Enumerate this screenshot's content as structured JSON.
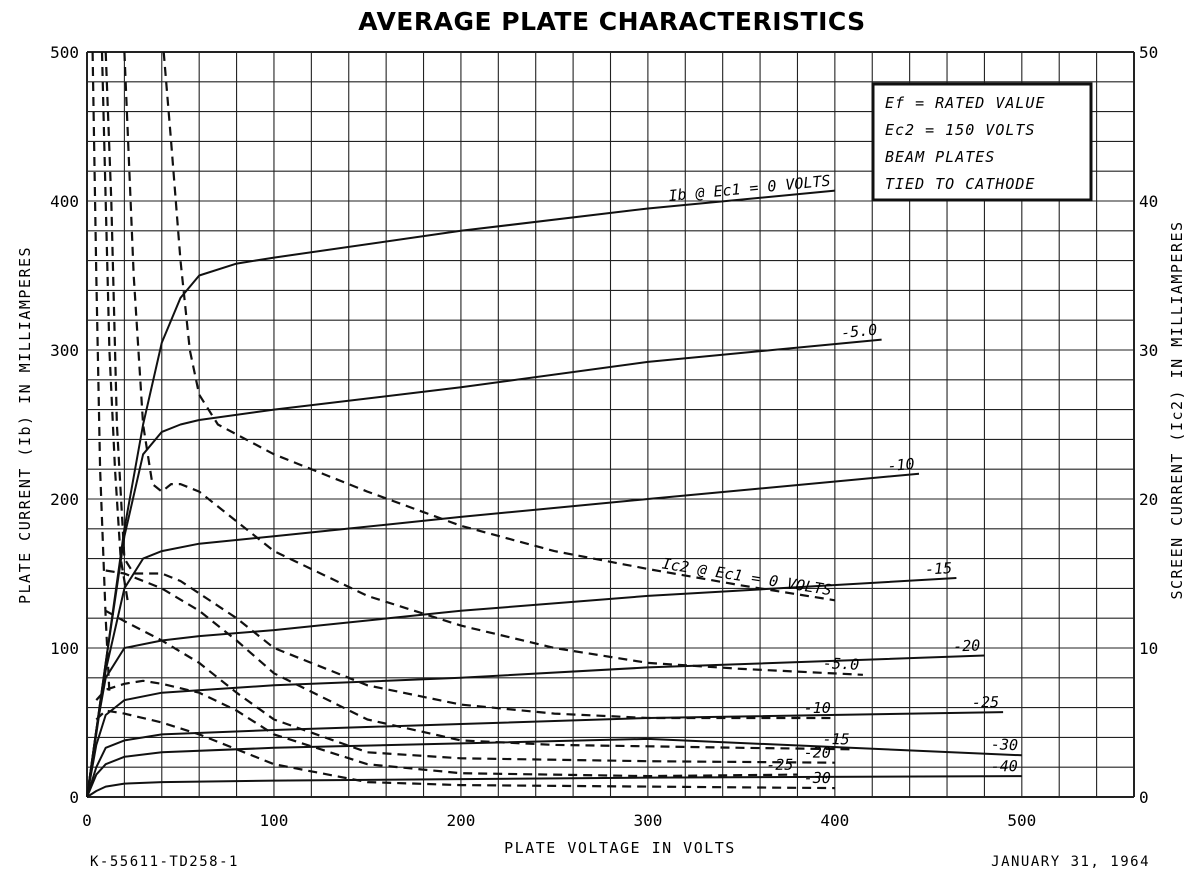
{
  "chart_data": {
    "type": "line",
    "title": "AVERAGE PLATE CHARACTERISTICS",
    "xlabel": "PLATE VOLTAGE IN VOLTS",
    "ylabel": "PLATE CURRENT (Ib) IN MILLIAMPERES",
    "y2label": "SCREEN CURRENT (Ic2) IN MILLIAMPERES",
    "xlim": [
      0,
      560
    ],
    "ylim": [
      0,
      500
    ],
    "y2lim": [
      0,
      50
    ],
    "x_ticks": [
      "0",
      "100",
      "200",
      "300",
      "400",
      "500"
    ],
    "y_ticks": [
      "0",
      "100",
      "200",
      "300",
      "400",
      "500"
    ],
    "y2_ticks": [
      "0",
      "10",
      "20",
      "30",
      "40",
      "50"
    ],
    "grid": true,
    "conditions": [
      "Ef = RATED VALUE",
      "Ec2 = 150 VOLTS",
      "BEAM PLATES",
      "TIED TO CATHODE"
    ],
    "footer_left": "K-55611-TD258-1",
    "footer_right": "JANUARY 31, 1964",
    "plate_series": [
      {
        "name": "Ib @ Ec1 = 0 VOLTS",
        "label": "Ib @ Ec1 = 0 VOLTS",
        "x": [
          0,
          10,
          20,
          30,
          40,
          50,
          60,
          80,
          100,
          200,
          300,
          400
        ],
        "y": [
          0,
          90,
          180,
          250,
          305,
          335,
          350,
          358,
          362,
          380,
          395,
          407
        ]
      },
      {
        "name": "Ib @ Ec1 = -5.0",
        "label": "-5.0",
        "x": [
          0,
          10,
          20,
          30,
          40,
          50,
          60,
          100,
          200,
          300,
          425
        ],
        "y": [
          0,
          90,
          175,
          230,
          245,
          250,
          253,
          260,
          275,
          292,
          307
        ]
      },
      {
        "name": "Ib @ Ec1 = -10",
        "label": "-10",
        "x": [
          0,
          10,
          20,
          30,
          40,
          60,
          100,
          200,
          300,
          445
        ],
        "y": [
          0,
          85,
          140,
          160,
          165,
          170,
          175,
          188,
          200,
          217
        ]
      },
      {
        "name": "Ib @ Ec1 = -15",
        "label": "-15",
        "x": [
          0,
          5,
          10,
          20,
          40,
          60,
          100,
          200,
          300,
          465
        ],
        "y": [
          0,
          45,
          80,
          100,
          105,
          108,
          112,
          125,
          135,
          147
        ]
      },
      {
        "name": "Ib @ Ec1 = -20",
        "label": "-20",
        "x": [
          0,
          5,
          10,
          20,
          40,
          100,
          200,
          300,
          480
        ],
        "y": [
          0,
          35,
          55,
          65,
          70,
          75,
          80,
          87,
          95
        ]
      },
      {
        "name": "Ib @ Ec1 = -25",
        "label": "-25",
        "x": [
          0,
          5,
          10,
          20,
          40,
          100,
          200,
          300,
          490
        ],
        "y": [
          0,
          20,
          33,
          38,
          42,
          45,
          49,
          53,
          57
        ]
      },
      {
        "name": "Ib @ Ec1 = -30",
        "label": "-30",
        "x": [
          0,
          5,
          10,
          20,
          40,
          100,
          200,
          300,
          500
        ],
        "y": [
          0,
          15,
          22,
          27,
          30,
          33,
          36,
          39,
          28
        ]
      },
      {
        "name": "Ib @ Ec1 = -40",
        "label": "-40",
        "x": [
          0,
          5,
          10,
          20,
          40,
          100,
          200,
          300,
          500
        ],
        "y": [
          0,
          4,
          7,
          9,
          10,
          11,
          12,
          13,
          14
        ]
      }
    ],
    "screen_series": [
      {
        "name": "Ic2 @ Ec1 = 0 VOLTS",
        "label": "Ic2 @ Ec1 = 0 VOLTS",
        "x": [
          41,
          45,
          50,
          55,
          60,
          70,
          100,
          150,
          200,
          250,
          300,
          350,
          400
        ],
        "y": [
          50,
          44,
          36,
          30,
          27,
          25,
          23,
          20.5,
          18.2,
          16.5,
          15.3,
          14.2,
          13.2
        ]
      },
      {
        "name": "Ic2 @ Ec1 = -5.0",
        "label": "-5.0",
        "x": [
          20,
          25,
          30,
          35,
          40,
          45,
          50,
          60,
          80,
          100,
          150,
          200,
          250,
          300,
          350,
          415
        ],
        "y": [
          50,
          35,
          25,
          21,
          20.5,
          21,
          21,
          20.5,
          18.5,
          16.5,
          13.5,
          11.5,
          10,
          9,
          8.6,
          8.2
        ]
      },
      {
        "name": "Ic2 @ Ec1 = -10",
        "label": "-10",
        "x": [
          10,
          13,
          16,
          20,
          25,
          30,
          40,
          50,
          80,
          100,
          150,
          200,
          250,
          300,
          350,
          400
        ],
        "y": [
          50,
          40,
          25,
          16,
          15,
          15,
          15,
          14.5,
          12,
          10,
          7.5,
          6.2,
          5.6,
          5.3,
          5.3,
          5.3
        ]
      },
      {
        "name": "Ic2 @ Ec1 = -15",
        "label": "-15",
        "x": [
          10,
          20,
          40,
          60,
          80,
          100,
          150,
          200,
          250,
          300,
          350,
          410
        ],
        "y": [
          15.2,
          15.0,
          14.0,
          12.5,
          10.5,
          8.3,
          5.2,
          3.8,
          3.5,
          3.4,
          3.3,
          3.2
        ]
      },
      {
        "name": "Ic2 @ Ec1 = -20",
        "label": "-20",
        "x": [
          10,
          20,
          40,
          60,
          80,
          100,
          150,
          200,
          300,
          400
        ],
        "y": [
          12.5,
          11.8,
          10.5,
          9.0,
          7.0,
          5.2,
          3.0,
          2.6,
          2.4,
          2.3
        ]
      },
      {
        "name": "Ic2 @ Ec1 = -25",
        "label": "-25",
        "x": [
          5,
          10,
          20,
          30,
          40,
          60,
          80,
          100,
          150,
          200,
          300,
          380
        ],
        "y": [
          6.5,
          7.2,
          7.6,
          7.8,
          7.6,
          7.0,
          5.8,
          4.2,
          2.2,
          1.6,
          1.4,
          1.5
        ]
      },
      {
        "name": "Ic2 @ Ec1 = -30",
        "label": "-30",
        "x": [
          5,
          10,
          20,
          40,
          60,
          80,
          100,
          150,
          200,
          300,
          400
        ],
        "y": [
          5.2,
          5.8,
          5.6,
          5.0,
          4.2,
          3.2,
          2.2,
          1.0,
          0.8,
          0.7,
          0.6
        ]
      },
      {
        "name": "Ic2 steep 1",
        "label": "",
        "x": [
          3,
          5,
          7,
          10,
          12
        ],
        "y": [
          50,
          35,
          22,
          12,
          7
        ]
      },
      {
        "name": "Ic2 steep 2",
        "label": "",
        "x": [
          8,
          10,
          12,
          15,
          18,
          22
        ],
        "y": [
          50,
          40,
          30,
          22,
          16,
          13
        ]
      }
    ]
  }
}
